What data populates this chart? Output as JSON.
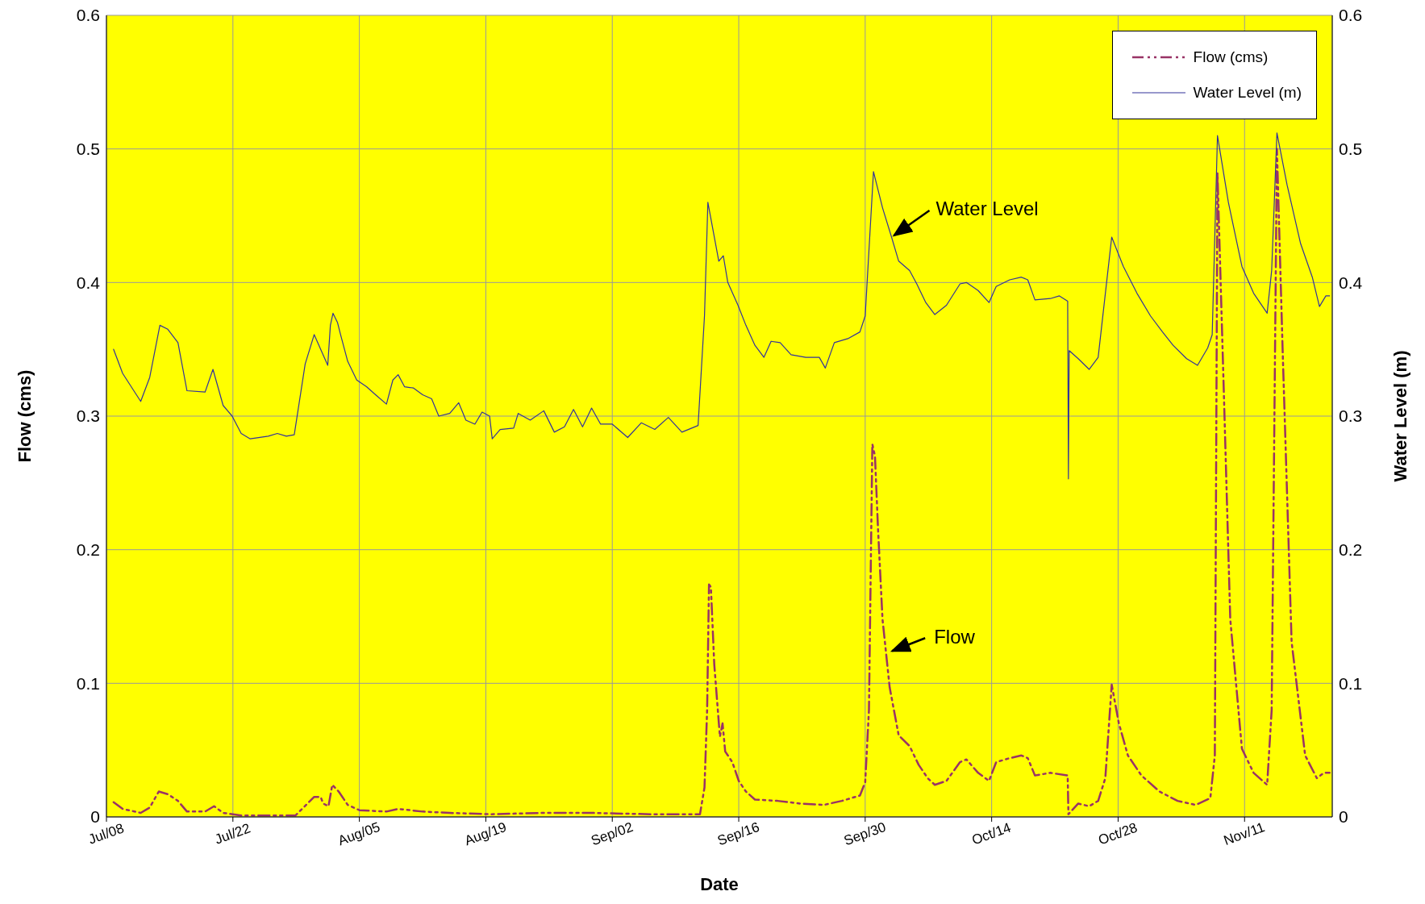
{
  "chart_data": {
    "type": "line",
    "xlabel": "Date",
    "ylabel": "Flow (cms)",
    "y2label": "Water Level (m)",
    "xlim": [
      "--07-08",
      "--11-20T17:00"
    ],
    "xticks": [
      {
        "value": "--07-08",
        "label": "Jul/08"
      },
      {
        "value": "--07-22",
        "label": "Jul/22"
      },
      {
        "value": "--08-05",
        "label": "Aug/05"
      },
      {
        "value": "--08-19",
        "label": "Aug/19"
      },
      {
        "value": "--09-02",
        "label": "Sep/02"
      },
      {
        "value": "--09-16",
        "label": "Sep/16"
      },
      {
        "value": "--09-30",
        "label": "Sep/30"
      },
      {
        "value": "--10-14",
        "label": "Oct/14"
      },
      {
        "value": "--10-28",
        "label": "Oct/28"
      },
      {
        "value": "--11-11",
        "label": "Nov/11"
      }
    ],
    "ylim": [
      0,
      0.6
    ],
    "yticks": [
      0,
      0.1,
      0.2,
      0.3,
      0.4,
      0.5,
      0.6
    ],
    "y2lim": [
      0,
      0.6
    ],
    "y2ticks": [
      0,
      0.1,
      0.2,
      0.3,
      0.4,
      0.5,
      0.6
    ],
    "grid": true,
    "legend": "top right",
    "marker": "none",
    "series": [
      {
        "name": "Flow (cms)",
        "color": "#993366",
        "line_style": "dashed",
        "x": [
          "--07-08T19:00",
          "--07-09T19:00",
          "--07-11T19:00",
          "--07-12T19:00",
          "--07-13T19:00",
          "--07-14T19:00",
          "--07-15T22:00",
          "--07-16T22:00",
          "--07-18T22:00",
          "--07-19T22:00",
          "--07-20T22:00",
          "--07-22T22:00",
          "--07-28T22:00",
          "--07-31",
          "--07-31T17:00",
          "--08-01",
          "--08-01T14:00",
          "--08-02",
          "--08-02T17:00",
          "--08-03T17:00",
          "--08-05",
          "--08-08",
          "--08-09T07:00",
          "--08-12",
          "--08-15",
          "--08-19T14:00",
          "--08-25T02:00",
          "--08-30T17:00",
          "--09-06T05:00",
          "--09-11T17:00",
          "--09-12T05:00",
          "--09-12T12:00",
          "--09-12T17:00",
          "--09-12T22:00",
          "--09-13T07:00",
          "--09-13T22:00",
          "--09-14T05:00",
          "--09-14T12:00",
          "--09-15T07:00",
          "--09-16",
          "--09-16T19:00",
          "--09-17T19:00",
          "--09-20T07:00",
          "--09-22T19:00",
          "--09-25T10:00",
          "--09-27T10:00",
          "--09-29T10:00",
          "--09-30",
          "--09-30T10:00",
          "--09-30T19:00",
          "--10-01T02:00",
          "--10-01T10:00",
          "--10-01T22:00",
          "--10-02T17:00",
          "--10-03T17:00",
          "--10-04T22:00",
          "--10-05T22:00",
          "--10-06T22:00",
          "--10-07T17:00",
          "--10-09",
          "--10-10T12:00",
          "--10-11T05:00",
          "--10-12T12:00",
          "--10-13T17:00",
          "--10-14T12:00",
          "--10-16",
          "--10-17T07:00",
          "--10-18",
          "--10-18T19:00",
          "--10-20T12:00",
          "--10-22T10:00",
          "--10-22T12:00",
          "--10-23T14:00",
          "--10-24T19:00",
          "--10-25T19:00",
          "--10-26T14:00",
          "--10-27T07:00",
          "--10-28T02:00",
          "--10-29T02:00",
          "--10-30T14:00",
          "--11-01T14:00",
          "--11-03T14:00",
          "--11-05T14:00",
          "--11-07T05:00",
          "--11-07T17:00",
          "--11-08",
          "--11-08T17:00",
          "--11-09T10:00",
          "--11-10T17:00",
          "--11-12",
          "--11-13T12:00",
          "--11-14",
          "--11-14T14:00",
          "--11-15T05:00",
          "--11-16T05:00",
          "--11-17T17:00",
          "--11-19",
          "--11-19T19:00",
          "--11-20T10:00"
        ],
        "values": [
          0.011,
          0.006,
          0.003,
          0.007,
          0.019,
          0.017,
          0.012,
          0.004,
          0.004,
          0.008,
          0.003,
          0.001,
          0.001,
          0.015,
          0.015,
          0.01,
          0.008,
          0.024,
          0.019,
          0.009,
          0.005,
          0.004,
          0.006,
          0.004,
          0.003,
          0.002,
          0.003,
          0.003,
          0.002,
          0.002,
          0.022,
          0.08,
          0.174,
          0.172,
          0.114,
          0.06,
          0.07,
          0.049,
          0.041,
          0.027,
          0.019,
          0.013,
          0.012,
          0.01,
          0.009,
          0.012,
          0.016,
          0.026,
          0.08,
          0.279,
          0.27,
          0.216,
          0.148,
          0.097,
          0.061,
          0.053,
          0.039,
          0.029,
          0.024,
          0.027,
          0.041,
          0.043,
          0.033,
          0.027,
          0.041,
          0.044,
          0.046,
          0.044,
          0.031,
          0.033,
          0.031,
          0.002,
          0.01,
          0.008,
          0.012,
          0.029,
          0.099,
          0.07,
          0.046,
          0.031,
          0.019,
          0.012,
          0.009,
          0.014,
          0.046,
          0.482,
          0.317,
          0.148,
          0.051,
          0.033,
          0.024,
          0.08,
          0.5,
          0.351,
          0.131,
          0.046,
          0.029,
          0.033,
          0.033
        ]
      },
      {
        "name": "Water Level (m)",
        "color": "#333399",
        "line_style": "solid",
        "axis": "y2",
        "x": [
          "--07-08T19:00",
          "--07-09T19:00",
          "--07-11T19:00",
          "--07-12T19:00",
          "--07-13T22:00",
          "--07-14T19:00",
          "--07-15T22:00",
          "--07-16T22:00",
          "--07-18T22:00",
          "--07-19T19:00",
          "--07-20T22:00",
          "--07-21T22:00",
          "--07-22T22:00",
          "--07-23T22:00",
          "--07-25T22:00",
          "--07-26T22:00",
          "--07-27T22:00",
          "--07-28T19:00",
          "--07-30",
          "--07-31",
          "--07-31T22:00",
          "--08-01T12:00",
          "--08-01T19:00",
          "--08-02T02:00",
          "--08-02T14:00",
          "--08-02T22:00",
          "--08-03T17:00",
          "--08-04T17:00",
          "--08-05T19:00",
          "--08-06T19:00",
          "--08-08",
          "--08-08T17:00",
          "--08-09T07:00",
          "--08-10",
          "--08-11",
          "--08-12",
          "--08-13",
          "--08-13T19:00",
          "--08-15",
          "--08-16",
          "--08-16T19:00",
          "--08-17T19:00",
          "--08-18T14:00",
          "--08-19T10:00",
          "--08-19T17:00",
          "--08-20T14:00",
          "--08-22T02:00",
          "--08-22T14:00",
          "--08-23T22:00",
          "--08-25T10:00",
          "--08-26T14:00",
          "--08-27T17:00",
          "--08-28T17:00",
          "--08-29T17:00",
          "--08-30T17:00",
          "--08-31T17:00",
          "--09-02",
          "--09-03T17:00",
          "--09-05T05:00",
          "--09-06T17:00",
          "--09-08T05:00",
          "--09-09T17:00",
          "--09-11T12:00",
          "--09-12T05:00",
          "--09-12T14:00",
          "--09-13T19:00",
          "--09-14T07:00",
          "--09-14T19:00",
          "--09-15T22:00",
          "--09-16T19:00",
          "--09-17T19:00",
          "--09-18T19:00",
          "--09-19T14:00",
          "--09-20T14:00",
          "--09-21T19:00",
          "--09-23T10:00",
          "--09-24T22:00",
          "--09-25T14:00",
          "--09-26T14:00",
          "--09-28T02:00",
          "--09-29T10:00",
          "--09-30",
          "--09-30T22:00",
          "--10-01T22:00",
          "--10-02T22:00",
          "--10-03T17:00",
          "--10-04T22:00",
          "--10-05T17:00",
          "--10-06T17:00",
          "--10-07T17:00",
          "--10-09",
          "--10-10T12:00",
          "--10-11T05:00",
          "--10-12T12:00",
          "--10-13T17:00",
          "--10-14T12:00",
          "--10-16",
          "--10-17T07:00",
          "--10-18",
          "--10-18T19:00",
          "--10-20T12:00",
          "--10-21T12:00",
          "--10-22T10:00",
          "--10-22T12:00",
          "--10-22T14:00",
          "--10-23T14:00",
          "--10-24T19:00",
          "--10-25T19:00",
          "--10-27T07:00",
          "--10-28T14:00",
          "--10-30T02:00",
          "--10-31T14:00",
          "--11-01T22:00",
          "--11-03T02:00",
          "--11-04T14:00",
          "--11-05T19:00",
          "--11-06T22:00",
          "--11-07T10:00",
          "--11-08",
          "--11-09T05:00",
          "--11-10T17:00",
          "--11-12",
          "--11-13T12:00",
          "--11-14",
          "--11-14T14:00",
          "--11-15T17:00",
          "--11-17T05:00",
          "--11-18T12:00",
          "--11-19T07:00",
          "--11-20",
          "--11-20T10:00"
        ],
        "values": [
          0.35,
          0.332,
          0.311,
          0.329,
          0.368,
          0.365,
          0.355,
          0.319,
          0.318,
          0.335,
          0.308,
          0.3,
          0.287,
          0.283,
          0.285,
          0.287,
          0.285,
          0.286,
          0.339,
          0.361,
          0.347,
          0.338,
          0.368,
          0.377,
          0.37,
          0.361,
          0.341,
          0.327,
          0.322,
          0.316,
          0.309,
          0.327,
          0.331,
          0.322,
          0.321,
          0.316,
          0.313,
          0.3,
          0.302,
          0.31,
          0.297,
          0.294,
          0.303,
          0.3,
          0.283,
          0.29,
          0.291,
          0.302,
          0.297,
          0.304,
          0.288,
          0.292,
          0.305,
          0.292,
          0.306,
          0.294,
          0.294,
          0.284,
          0.295,
          0.29,
          0.299,
          0.288,
          0.293,
          0.375,
          0.46,
          0.416,
          0.42,
          0.4,
          0.383,
          0.368,
          0.353,
          0.344,
          0.356,
          0.355,
          0.346,
          0.344,
          0.344,
          0.336,
          0.355,
          0.358,
          0.363,
          0.375,
          0.483,
          0.456,
          0.434,
          0.416,
          0.409,
          0.399,
          0.385,
          0.376,
          0.383,
          0.399,
          0.4,
          0.394,
          0.385,
          0.397,
          0.402,
          0.404,
          0.402,
          0.387,
          0.388,
          0.39,
          0.386,
          0.253,
          0.349,
          0.343,
          0.335,
          0.344,
          0.434,
          0.412,
          0.392,
          0.375,
          0.363,
          0.353,
          0.343,
          0.338,
          0.351,
          0.361,
          0.51,
          0.46,
          0.412,
          0.392,
          0.377,
          0.409,
          0.512,
          0.473,
          0.429,
          0.404,
          0.382,
          0.39,
          0.39
        ]
      }
    ],
    "annotations": [
      {
        "text": "Water Level",
        "x": "--10-02T22:00",
        "y": 0.434
      },
      {
        "text": "Flow",
        "x": "--10-02T17:00",
        "y": 0.123
      }
    ]
  }
}
